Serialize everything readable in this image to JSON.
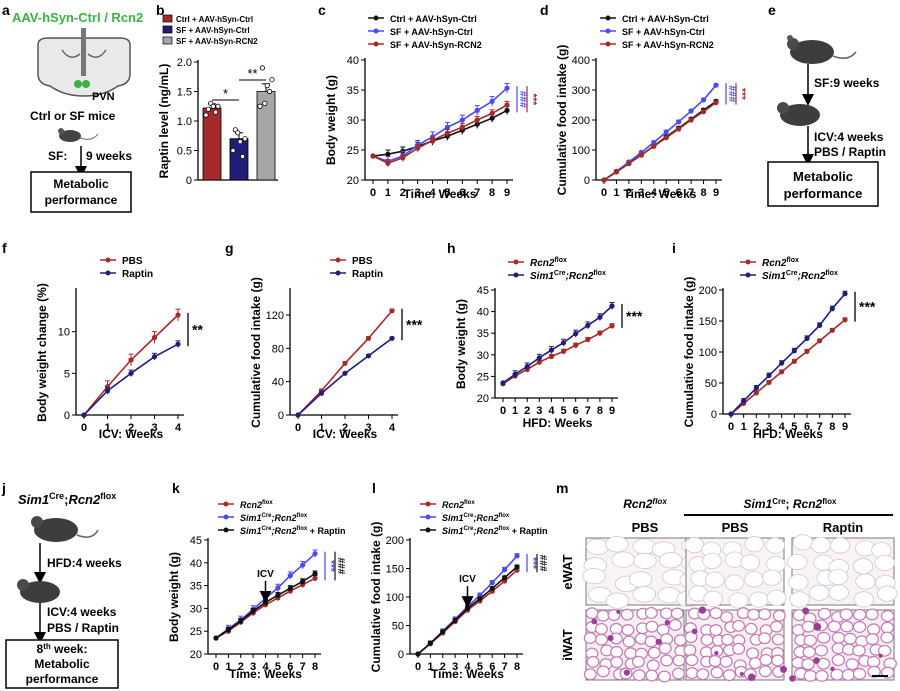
{
  "colors": {
    "black": "#111111",
    "blue": "#4a4af0",
    "red": "#a52a2a",
    "navy": "#1f1f7a",
    "green": "#3cb043",
    "gray": "#a6a6a6"
  },
  "panels": {
    "a": {
      "letter": "a",
      "virus": "AAV-hSyn-Ctrl / Rcn2",
      "pvn": "PVN",
      "mice": "Ctrl or SF mice",
      "sf": "SF:",
      "weeks": "9 weeks",
      "box_line1": "Metabolic",
      "box_line2": "performance"
    },
    "e": {
      "letter": "e",
      "step1": "SF:9 weeks",
      "step2a": "ICV:4 weeks",
      "step2b": "PBS / Raptin",
      "box_line1": "Metabolic",
      "box_line2": "performance"
    },
    "f": {
      "letter": "f"
    },
    "g": {
      "letter": "g"
    },
    "h": {
      "letter": "h"
    },
    "i": {
      "letter": "i"
    },
    "j": {
      "letter": "j",
      "title_gene": "Sim1",
      "title_sup": "Cre",
      "title_sep": ";",
      "title_gene2": "Rcn2",
      "title_sup2": "flox",
      "step1": "HFD:4 weeks",
      "step2a": "ICV:4 weeks",
      "step2b": "PBS / Raptin",
      "box_pre": "8",
      "box_sup": "th",
      "box_week": " week:",
      "box_line2": "Metabolic",
      "box_line3": "performance"
    },
    "m": {
      "letter": "m",
      "group1": "Rcn2",
      "group1_sup": "flox",
      "group2": "Sim1",
      "group2_sup": "Cre",
      "group2_sep": "; ",
      "group2_b": "Rcn2",
      "group2_bsup": "flox",
      "col1": "PBS",
      "col2": "PBS",
      "col3": "Raptin",
      "row1": "eWAT",
      "row2": "iWAT"
    }
  },
  "chart_data": [
    {
      "id": "b",
      "type": "bar",
      "ylabel": "Raptin level (ng/mL)",
      "ylim": [
        0,
        2
      ],
      "yticks": [
        0,
        0.5,
        1,
        1.5,
        2
      ],
      "yticklabels": [
        "0",
        "0.5",
        "1.0",
        "1.5",
        "2.0"
      ],
      "legend": [
        "Ctrl + AAV-hSyn-Ctrl",
        "SF + AAV-hSyn-Ctrl",
        "SF + AAV-hSyn-RCN2"
      ],
      "values": [
        1.22,
        0.7,
        1.5
      ],
      "errors": [
        0.07,
        0.1,
        0.13
      ],
      "points": [
        [
          1.1,
          1.2,
          1.3,
          1.25,
          1.15,
          1.25
        ],
        [
          0.5,
          0.85,
          0.8,
          0.65,
          0.4,
          0.7
        ],
        [
          1.25,
          1.9,
          1.3,
          1.6,
          1.5,
          1.7
        ]
      ],
      "significance": [
        {
          "from": 0,
          "to": 1,
          "label": "*"
        },
        {
          "from": 1,
          "to": 2,
          "label": "**"
        }
      ]
    },
    {
      "id": "c",
      "type": "line",
      "xlabel": "Time: Weeks",
      "ylabel": "Body weight (g)",
      "ylim": [
        20,
        40
      ],
      "yticks": [
        20,
        25,
        30,
        35,
        40
      ],
      "x": [
        0,
        1,
        2,
        3,
        4,
        5,
        6,
        7,
        8,
        9
      ],
      "series": [
        {
          "name": "Ctrl + AAV-hSyn-Ctrl",
          "values": [
            24,
            24.3,
            24.8,
            25.6,
            26.5,
            27.3,
            28.3,
            29.3,
            30.3,
            31.6
          ],
          "error": 0.7
        },
        {
          "name": "SF + AAV-hSyn-Ctrl",
          "values": [
            24,
            23.1,
            24,
            25.8,
            27.2,
            28.8,
            30,
            31.6,
            33.1,
            35.3
          ],
          "error": 0.8
        },
        {
          "name": "SF + AAV-hSyn-RCN2",
          "values": [
            24,
            22.8,
            23.7,
            25.3,
            26.6,
            27.8,
            28.8,
            30,
            31.1,
            32.5
          ],
          "error": 0.6
        }
      ],
      "annotations": [
        "###",
        "***"
      ]
    },
    {
      "id": "d",
      "type": "line",
      "xlabel": "Time: Weeks",
      "ylabel": "Cumulative food intake (g)",
      "ylim": [
        0,
        400
      ],
      "yticks": [
        0,
        100,
        200,
        300,
        400
      ],
      "x": [
        0,
        1,
        2,
        3,
        4,
        5,
        6,
        7,
        8,
        9
      ],
      "series": [
        {
          "name": "Ctrl + AAV-hSyn-Ctrl",
          "values": [
            0,
            27,
            55,
            84,
            113,
            144,
            173,
            203,
            233,
            262
          ],
          "error": 5
        },
        {
          "name": "SF + AAV-hSyn-Ctrl",
          "values": [
            0,
            29,
            60,
            92,
            125,
            160,
            194,
            230,
            267,
            316
          ],
          "error": 5
        },
        {
          "name": "SF + AAV-hSyn-RCN2",
          "values": [
            0,
            27,
            55,
            83,
            112,
            141,
            170,
            200,
            228,
            258
          ],
          "error": 5
        }
      ],
      "annotations": [
        "###",
        "***"
      ]
    },
    {
      "id": "f",
      "type": "line",
      "xlabel": "ICV: Weeks",
      "ylabel": "Body weight change (%)",
      "ylim": [
        0,
        15
      ],
      "yticks": [
        0,
        5,
        10
      ],
      "x": [
        0,
        1,
        2,
        3,
        4
      ],
      "series": [
        {
          "name": "PBS",
          "values": [
            0,
            3.4,
            6.6,
            9.3,
            12
          ],
          "error": 0.7
        },
        {
          "name": "Raptin",
          "values": [
            0,
            2.9,
            5,
            7,
            8.5
          ],
          "error": 0.4
        }
      ],
      "annotations": [
        "**"
      ]
    },
    {
      "id": "g",
      "type": "line",
      "xlabel": "ICV: Weeks",
      "ylabel": "Cumulative food intake (g)",
      "ylim": [
        0,
        150
      ],
      "yticks": [
        0,
        40,
        80,
        120
      ],
      "x": [
        0,
        1,
        2,
        3,
        4
      ],
      "series": [
        {
          "name": "PBS",
          "values": [
            0,
            29,
            62,
            92,
            125
          ],
          "error": 2
        },
        {
          "name": "Raptin",
          "values": [
            0,
            26,
            50,
            71,
            92
          ],
          "error": 1.5
        }
      ],
      "annotations": [
        "***"
      ]
    },
    {
      "id": "h",
      "type": "line",
      "xlabel": "HFD: Weeks",
      "ylabel": "Body weight (g)",
      "ylim": [
        20,
        45
      ],
      "yticks": [
        20,
        25,
        30,
        35,
        40,
        45
      ],
      "x": [
        0,
        1,
        2,
        3,
        4,
        5,
        6,
        7,
        8,
        9
      ],
      "series": [
        {
          "name": "Rcn2",
          "sup": "flox",
          "values": [
            23.3,
            25.1,
            26.6,
            28.3,
            29.6,
            30.8,
            32.2,
            33.5,
            35,
            36.7
          ],
          "error": 0.5
        },
        {
          "name": "Sim1",
          "sup": "Cre",
          "name2": ";Rcn2",
          "sup2": "flox",
          "values": [
            23.5,
            25.5,
            27.3,
            29.3,
            31.1,
            32.8,
            34.9,
            36.8,
            38.7,
            41.3
          ],
          "error": 0.8
        }
      ],
      "annotations": [
        "***"
      ]
    },
    {
      "id": "i",
      "type": "line",
      "xlabel": "HFD: Weeks",
      "ylabel": "Cumulative food intake (g)",
      "ylim": [
        0,
        200
      ],
      "yticks": [
        0,
        50,
        100,
        150,
        200
      ],
      "x": [
        0,
        1,
        2,
        3,
        4,
        5,
        6,
        7,
        8,
        9
      ],
      "series": [
        {
          "name": "Rcn2",
          "sup": "flox",
          "values": [
            0,
            17,
            34,
            51,
            68,
            85,
            101,
            118,
            135,
            152
          ],
          "error": 3
        },
        {
          "name": "Sim1",
          "sup": "Cre",
          "name2": ";Rcn2",
          "sup2": "flox",
          "values": [
            0,
            21,
            42,
            62,
            82,
            102,
            122,
            143,
            170,
            194
          ],
          "error": 4
        }
      ],
      "annotations": [
        "***"
      ]
    },
    {
      "id": "k",
      "type": "line",
      "xlabel": "Time: Weeks",
      "ylabel": "Body weight (g)",
      "ylim": [
        20,
        45
      ],
      "yticks": [
        20,
        25,
        30,
        35,
        40,
        45
      ],
      "x": [
        0,
        1,
        2,
        3,
        4,
        5,
        6,
        7,
        8
      ],
      "series": [
        {
          "name": "Rcn2",
          "sup": "flox",
          "values": [
            23.5,
            25,
            27,
            29,
            30.8,
            32.3,
            33.8,
            35.2,
            36.6
          ],
          "error": 0.6
        },
        {
          "name": "Sim1",
          "sup": "Cre",
          "name2": ";Rcn2",
          "sup2": "flox",
          "values": [
            23.5,
            25.5,
            27.5,
            29.8,
            32.2,
            34.5,
            37.2,
            39.5,
            42
          ],
          "error": 0.8
        },
        {
          "name": "Sim1",
          "sup": "Cre",
          "name2": ";Rcn2",
          "sup2": "flox",
          "suffix": " + Raptin",
          "values": [
            23.5,
            25.3,
            27.2,
            29.4,
            31.3,
            32.9,
            34.4,
            35.9,
            37.6
          ],
          "error": 0.6
        }
      ],
      "arrow": {
        "x": 4,
        "label": "ICV"
      },
      "annotations": [
        "***",
        "###"
      ]
    },
    {
      "id": "l",
      "type": "line",
      "xlabel": "Time: Weeks",
      "ylabel": "Cumulative food intake (g)",
      "ylim": [
        0,
        200
      ],
      "yticks": [
        0,
        50,
        100,
        150,
        200
      ],
      "x": [
        0,
        1,
        2,
        3,
        4,
        5,
        6,
        7,
        8
      ],
      "series": [
        {
          "name": "Rcn2",
          "sup": "flox",
          "values": [
            0,
            18,
            37,
            57,
            77,
            93,
            110,
            128,
            147
          ],
          "error": 3
        },
        {
          "name": "Sim1",
          "sup": "Cre",
          "name2": ";Rcn2",
          "sup2": "flox",
          "values": [
            0,
            19,
            40,
            61,
            83,
            103,
            125,
            148,
            172
          ],
          "error": 4
        },
        {
          "name": "Sim1",
          "sup": "Cre",
          "name2": ";Rcn2",
          "sup2": "flox",
          "suffix": " + Raptin",
          "values": [
            0,
            19,
            39,
            59,
            80,
            97,
            115,
            134,
            153
          ],
          "error": 3
        }
      ],
      "arrow": {
        "x": 4,
        "label": "ICV"
      },
      "annotations": [
        "***",
        "###"
      ]
    }
  ]
}
